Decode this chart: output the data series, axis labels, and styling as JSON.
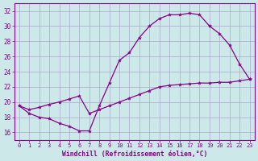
{
  "xlabel": "Windchill (Refroidissement éolien,°C)",
  "background_color": "#cce8e8",
  "grid_color": "#aaaacc",
  "line_color": "#880088",
  "xlim": [
    -0.5,
    23.5
  ],
  "ylim": [
    15.0,
    33.0
  ],
  "yticks": [
    16,
    18,
    20,
    22,
    24,
    26,
    28,
    30,
    32
  ],
  "xticks": [
    0,
    1,
    2,
    3,
    4,
    5,
    6,
    7,
    8,
    9,
    10,
    11,
    12,
    13,
    14,
    15,
    16,
    17,
    18,
    19,
    20,
    21,
    22,
    23
  ],
  "line1_x": [
    0,
    1,
    2,
    3,
    4,
    5,
    6,
    7,
    8,
    9,
    10,
    11,
    12,
    13,
    14,
    15,
    16,
    17,
    18,
    19
  ],
  "line1_y": [
    19.5,
    18.5,
    18.0,
    17.8,
    17.2,
    16.8,
    16.2,
    16.2,
    19.5,
    22.5,
    25.5,
    26.5,
    28.5,
    30.0,
    31.0,
    31.5,
    31.5,
    31.7,
    31.5,
    30.0
  ],
  "line2_x": [
    19,
    20,
    21,
    22,
    23
  ],
  "line2_y": [
    30.0,
    29.0,
    27.5,
    25.0,
    23.0
  ],
  "line3_x": [
    0,
    1,
    2,
    3,
    4,
    5,
    6,
    7,
    8,
    9,
    10,
    11,
    12,
    13,
    14,
    15,
    16,
    17,
    18,
    19,
    20,
    21,
    22,
    23
  ],
  "line3_y": [
    19.5,
    19.0,
    19.3,
    19.7,
    20.0,
    20.4,
    20.8,
    18.5,
    19.0,
    19.5,
    20.0,
    20.5,
    21.0,
    21.5,
    22.0,
    22.2,
    22.3,
    22.4,
    22.5,
    22.5,
    22.6,
    22.6,
    22.8,
    23.0
  ]
}
